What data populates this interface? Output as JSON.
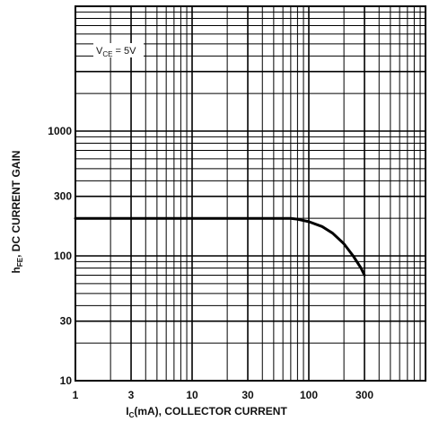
{
  "chart_data": {
    "type": "line",
    "title": "",
    "xlabel": {
      "main": "I",
      "sub": "C",
      "rest": "(mA), COLLECTOR CURRENT"
    },
    "ylabel": {
      "main": "h",
      "sub": "FE",
      "rest": ", DC CURRENT GAIN"
    },
    "x_scale": "log",
    "y_scale": "log",
    "xlim": [
      1,
      1000
    ],
    "ylim": [
      10,
      10000
    ],
    "x_ticks": [
      {
        "value": 1,
        "label": "1"
      },
      {
        "value": 3,
        "label": "3"
      },
      {
        "value": 10,
        "label": "10"
      },
      {
        "value": 30,
        "label": "30"
      },
      {
        "value": 100,
        "label": "100"
      },
      {
        "value": 300,
        "label": "300"
      }
    ],
    "y_ticks": [
      {
        "value": 10,
        "label": "10"
      },
      {
        "value": 30,
        "label": "30"
      },
      {
        "value": 100,
        "label": "100"
      },
      {
        "value": 300,
        "label": "300"
      },
      {
        "value": 1000,
        "label": "1000"
      }
    ],
    "grid": true,
    "annotation": {
      "main": "V",
      "sub": "CE",
      "rest": " = 5V"
    },
    "series": [
      {
        "x": [
          1,
          10,
          70,
          80,
          100,
          130,
          160,
          200,
          240,
          280,
          300
        ],
        "y": [
          200,
          200,
          200,
          197,
          188,
          172,
          152,
          125,
          100,
          80,
          70
        ]
      }
    ]
  }
}
